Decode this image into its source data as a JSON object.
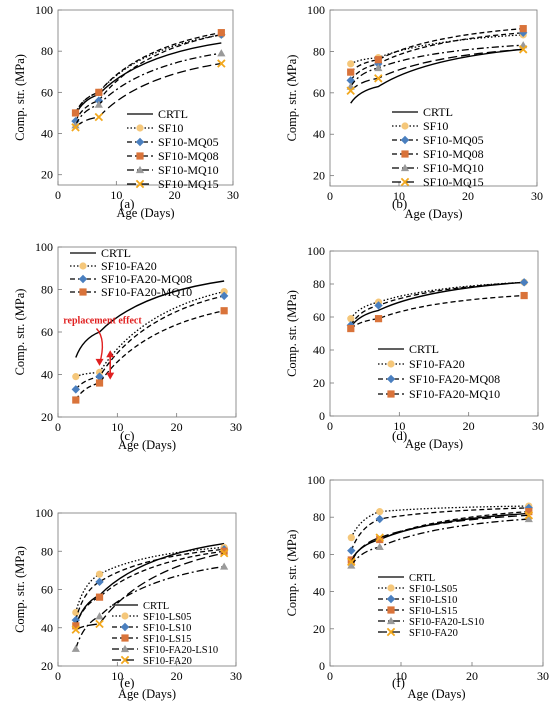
{
  "figure": {
    "panel_labels": [
      "(a)",
      "(b)",
      "(c)",
      "(d)",
      "(e)",
      "(f)"
    ]
  },
  "chart_data": [
    {
      "panel": "(a)",
      "type": "line",
      "xlabel": "Age (Days)",
      "ylabel": "Comp. str. (MPa)",
      "xlim": [
        0,
        30
      ],
      "ylim": [
        15,
        100
      ],
      "xticks": [
        0,
        10,
        20,
        30
      ],
      "yticks": [
        20,
        40,
        60,
        80,
        100
      ],
      "grid": false,
      "legend_position": "center-right",
      "annotations": [],
      "series": [
        {
          "name": "CRTL",
          "x": [
            3,
            7,
            28
          ],
          "y": [
            49,
            59,
            84
          ],
          "color": "#000000",
          "dash": "solid",
          "marker": "none"
        },
        {
          "name": "SF10",
          "x": [
            3,
            7,
            28
          ],
          "y": [
            50,
            60,
            88
          ],
          "color": "#f5c77a",
          "dash": "dot",
          "marker": "circle"
        },
        {
          "name": "SF10-MQ05",
          "x": [
            3,
            7,
            28
          ],
          "y": [
            46,
            56,
            88
          ],
          "color": "#4a7fbf",
          "dash": "dash",
          "marker": "diamond"
        },
        {
          "name": "SF10-MQ08",
          "x": [
            3,
            7,
            28
          ],
          "y": [
            50,
            60,
            89
          ],
          "color": "#d9733a",
          "dash": "dash",
          "marker": "square"
        },
        {
          "name": "SF10-MQ10",
          "x": [
            3,
            7,
            28
          ],
          "y": [
            44,
            54,
            79
          ],
          "color": "#9a9a9a",
          "dash": "dashdot",
          "marker": "triangle"
        },
        {
          "name": "SF10-MQ15",
          "x": [
            3,
            7,
            28
          ],
          "y": [
            43,
            48,
            74
          ],
          "color": "#f2a81d",
          "dash": "longdash",
          "marker": "x"
        }
      ]
    },
    {
      "panel": "(b)",
      "type": "line",
      "xlabel": "Age (Days)",
      "ylabel": "Comp. str. (MPa)",
      "xlim": [
        0,
        30
      ],
      "ylim": [
        15,
        100
      ],
      "xticks": [
        0,
        10,
        20,
        30
      ],
      "yticks": [
        20,
        40,
        60,
        80,
        100
      ],
      "grid": false,
      "legend_position": "center-right",
      "annotations": [],
      "series": [
        {
          "name": "CRTL",
          "x": [
            3,
            7,
            28
          ],
          "y": [
            55,
            63,
            81
          ],
          "color": "#000000",
          "dash": "solid",
          "marker": "none"
        },
        {
          "name": "SF10",
          "x": [
            3,
            7,
            28
          ],
          "y": [
            74,
            77,
            88
          ],
          "color": "#f5c77a",
          "dash": "dot",
          "marker": "circle"
        },
        {
          "name": "SF10-MQ05",
          "x": [
            3,
            7,
            28
          ],
          "y": [
            66,
            74,
            89
          ],
          "color": "#4a7fbf",
          "dash": "dash",
          "marker": "diamond"
        },
        {
          "name": "SF10-MQ08",
          "x": [
            3,
            7,
            28
          ],
          "y": [
            70,
            76,
            91
          ],
          "color": "#d9733a",
          "dash": "dash",
          "marker": "square"
        },
        {
          "name": "SF10-MQ10",
          "x": [
            3,
            7,
            28
          ],
          "y": [
            63,
            72,
            83
          ],
          "color": "#9a9a9a",
          "dash": "dashdot",
          "marker": "triangle"
        },
        {
          "name": "SF10-MQ15",
          "x": [
            3,
            7,
            28
          ],
          "y": [
            61,
            67,
            81
          ],
          "color": "#f2a81d",
          "dash": "longdash",
          "marker": "x"
        }
      ]
    },
    {
      "panel": "(c)",
      "type": "line",
      "xlabel": "Age (Days)",
      "ylabel": "Comp. str. (MPa)",
      "xlim": [
        0,
        30
      ],
      "ylim": [
        20,
        100
      ],
      "xticks": [
        0,
        10,
        20,
        30
      ],
      "yticks": [
        20,
        40,
        60,
        80,
        100
      ],
      "grid": false,
      "legend_position": "top-left",
      "annotations": [
        {
          "text": "replacement effect",
          "x": 7.5,
          "y": 64,
          "color": "#e02020"
        }
      ],
      "series": [
        {
          "name": "CRTL",
          "x": [
            3,
            7,
            28
          ],
          "y": [
            48,
            60,
            84
          ],
          "color": "#000000",
          "dash": "solid",
          "marker": "none"
        },
        {
          "name": "SF10-FA20",
          "x": [
            3,
            7,
            28
          ],
          "y": [
            39,
            41,
            79
          ],
          "color": "#f5c77a",
          "dash": "dot",
          "marker": "circle"
        },
        {
          "name": "SF10-FA20-MQ08",
          "x": [
            3,
            7,
            28
          ],
          "y": [
            33,
            39,
            77
          ],
          "color": "#4a7fbf",
          "dash": "dash",
          "marker": "diamond"
        },
        {
          "name": "SF10-FA20-MQ10",
          "x": [
            3,
            7,
            28
          ],
          "y": [
            28,
            36,
            70
          ],
          "color": "#d9733a",
          "dash": "dash",
          "marker": "square"
        }
      ]
    },
    {
      "panel": "(d)",
      "type": "line",
      "xlabel": "Age (Days)",
      "ylabel": "Comp. str. (MPa)",
      "xlim": [
        0,
        30
      ],
      "ylim": [
        0,
        100
      ],
      "xticks": [
        0,
        10,
        20,
        30
      ],
      "yticks": [
        0,
        20,
        40,
        60,
        80,
        100
      ],
      "grid": false,
      "legend_position": "bottom-center",
      "annotations": [],
      "series": [
        {
          "name": "CRTL",
          "x": [
            3,
            7,
            28
          ],
          "y": [
            54,
            64,
            81
          ],
          "color": "#000000",
          "dash": "solid",
          "marker": "none"
        },
        {
          "name": "SF10-FA20",
          "x": [
            3,
            7,
            28
          ],
          "y": [
            59,
            69,
            81
          ],
          "color": "#f5c77a",
          "dash": "dot",
          "marker": "circle"
        },
        {
          "name": "SF10-FA20-MQ08",
          "x": [
            3,
            7,
            28
          ],
          "y": [
            55,
            67,
            81
          ],
          "color": "#4a7fbf",
          "dash": "dash",
          "marker": "diamond"
        },
        {
          "name": "SF10-FA20-MQ10",
          "x": [
            3,
            7,
            28
          ],
          "y": [
            53,
            59,
            73
          ],
          "color": "#d9733a",
          "dash": "dash",
          "marker": "square"
        }
      ]
    },
    {
      "panel": "(e)",
      "type": "line",
      "xlabel": "Age (Days)",
      "ylabel": "Comp. str. (MPa)",
      "xlim": [
        0,
        30
      ],
      "ylim": [
        20,
        100
      ],
      "xticks": [
        0,
        10,
        20,
        30
      ],
      "yticks": [
        20,
        40,
        60,
        80,
        100
      ],
      "grid": false,
      "legend_position": "bottom-center",
      "annotations": [],
      "series": [
        {
          "name": "CRTL",
          "x": [
            3,
            7,
            28
          ],
          "y": [
            41,
            57,
            84
          ],
          "color": "#000000",
          "dash": "solid",
          "marker": "none"
        },
        {
          "name": "SF10-LS05",
          "x": [
            3,
            7,
            28
          ],
          "y": [
            48,
            68,
            82
          ],
          "color": "#f5c77a",
          "dash": "dot",
          "marker": "circle"
        },
        {
          "name": "SF10-LS10",
          "x": [
            3,
            7,
            28
          ],
          "y": [
            44,
            64,
            81
          ],
          "color": "#4a7fbf",
          "dash": "dash",
          "marker": "diamond"
        },
        {
          "name": "SF10-LS15",
          "x": [
            3,
            7,
            28
          ],
          "y": [
            41,
            56,
            80
          ],
          "color": "#d9733a",
          "dash": "dash",
          "marker": "square"
        },
        {
          "name": "SF10-FA20-LS10",
          "x": [
            3,
            7,
            28
          ],
          "y": [
            29,
            46,
            72
          ],
          "color": "#9a9a9a",
          "dash": "dashdot",
          "marker": "triangle"
        },
        {
          "name": "SF10-FA20",
          "x": [
            3,
            7,
            28
          ],
          "y": [
            39,
            42,
            79
          ],
          "color": "#f2a81d",
          "dash": "longdash",
          "marker": "x"
        }
      ]
    },
    {
      "panel": "(f)",
      "type": "line",
      "xlabel": "Age (Days)",
      "ylabel": "Comp. str. (MPa)",
      "xlim": [
        0,
        30
      ],
      "ylim": [
        0,
        100
      ],
      "xticks": [
        0,
        10,
        20,
        30
      ],
      "yticks": [
        0,
        20,
        40,
        60,
        80,
        100
      ],
      "grid": false,
      "legend_position": "bottom-center",
      "annotations": [],
      "series": [
        {
          "name": "CRTL",
          "x": [
            3,
            7,
            28
          ],
          "y": [
            57,
            68,
            82
          ],
          "color": "#000000",
          "dash": "solid",
          "marker": "none"
        },
        {
          "name": "SF10-LS05",
          "x": [
            3,
            7,
            28
          ],
          "y": [
            69,
            83,
            86
          ],
          "color": "#f5c77a",
          "dash": "dot",
          "marker": "circle"
        },
        {
          "name": "SF10-LS10",
          "x": [
            3,
            7,
            28
          ],
          "y": [
            62,
            79,
            85
          ],
          "color": "#4a7fbf",
          "dash": "dash",
          "marker": "diamond"
        },
        {
          "name": "SF10-LS15",
          "x": [
            3,
            7,
            28
          ],
          "y": [
            57,
            68,
            83
          ],
          "color": "#d9733a",
          "dash": "dash",
          "marker": "square"
        },
        {
          "name": "SF10-FA20-LS10",
          "x": [
            3,
            7,
            28
          ],
          "y": [
            54,
            64,
            79
          ],
          "color": "#9a9a9a",
          "dash": "dashdot",
          "marker": "triangle"
        },
        {
          "name": "SF10-FA20",
          "x": [
            3,
            7,
            28
          ],
          "y": [
            56,
            69,
            81
          ],
          "color": "#f2a81d",
          "dash": "longdash",
          "marker": "x"
        }
      ]
    }
  ]
}
